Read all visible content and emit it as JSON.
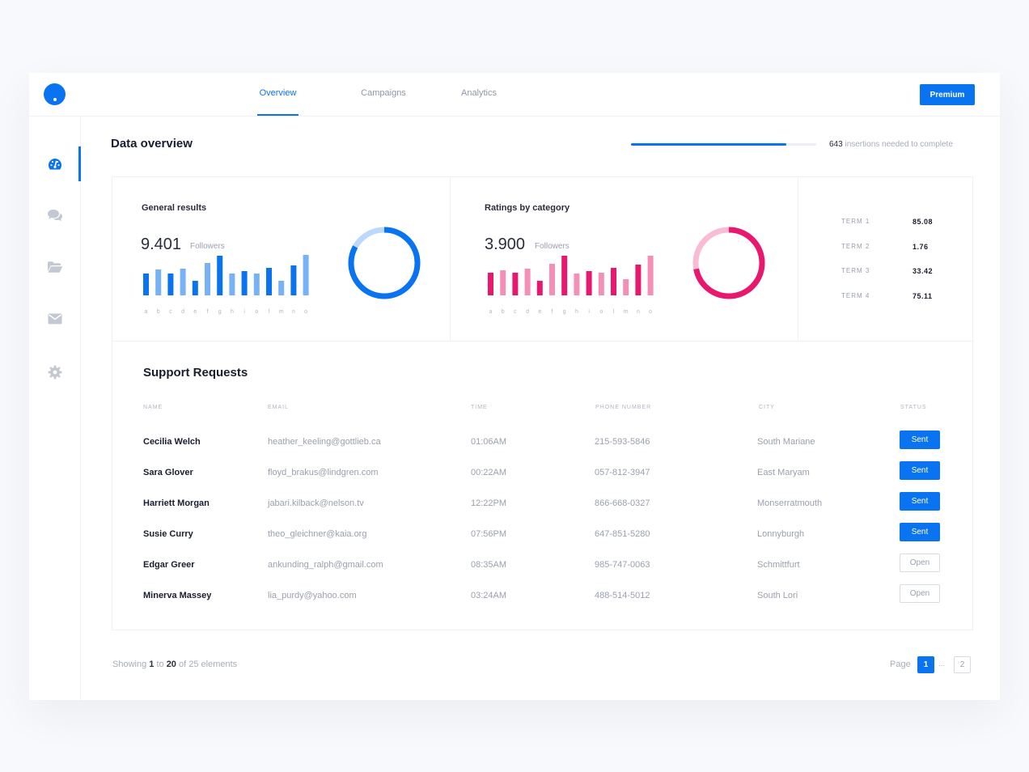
{
  "header": {
    "tabs": [
      {
        "label": "Overview",
        "active": true
      },
      {
        "label": "Campaigns",
        "active": false
      },
      {
        "label": "Analytics",
        "active": false
      }
    ],
    "premium_label": "Premium"
  },
  "sidebar": {
    "items": [
      {
        "icon": "dashboard-icon",
        "active": true
      },
      {
        "icon": "chat-icon",
        "active": false
      },
      {
        "icon": "folder-icon",
        "active": false
      },
      {
        "icon": "mail-icon",
        "active": false
      },
      {
        "icon": "settings-icon",
        "active": false
      }
    ]
  },
  "overview": {
    "title": "Data overview",
    "progress_fraction": 0.84,
    "progress_count": "643",
    "progress_text": " insertions needed to complete"
  },
  "general_results": {
    "title": "General results",
    "value": "9.401",
    "unit": "Followers",
    "donut_fraction": 0.83,
    "colors": {
      "bar_primary": "#0a73f0",
      "bar_secondary": "#78b2f6",
      "ring": "#0a73f0",
      "ring_track": "#bcd8fb"
    }
  },
  "ratings": {
    "title": "Ratings by category",
    "value": "3.900",
    "unit": "Followers",
    "donut_fraction": 0.72,
    "colors": {
      "bar_primary": "#e8186f",
      "bar_secondary": "#f48fb7",
      "ring": "#e8186f",
      "ring_track": "#f8bcd4"
    }
  },
  "chart_data": [
    {
      "type": "bar",
      "categories": [
        "a",
        "b",
        "c",
        "d",
        "e",
        "f",
        "g",
        "h",
        "i",
        "o",
        "l",
        "m",
        "n",
        "o"
      ],
      "values": [
        27,
        32,
        27,
        33,
        18,
        40,
        49,
        27,
        30,
        27,
        34,
        18,
        37,
        50
      ],
      "highlight": [
        true,
        false,
        true,
        false,
        true,
        false,
        true,
        false,
        true,
        false,
        true,
        false,
        true,
        false
      ],
      "ylim": [
        0,
        50
      ]
    },
    {
      "type": "bar",
      "categories": [
        "a",
        "b",
        "c",
        "d",
        "e",
        "f",
        "g",
        "h",
        "i",
        "o",
        "l",
        "m",
        "n",
        "o"
      ],
      "values": [
        28,
        31,
        28,
        33,
        18,
        39,
        49,
        27,
        30,
        28,
        34,
        20,
        38,
        49
      ],
      "highlight": [
        true,
        false,
        true,
        false,
        true,
        false,
        true,
        false,
        true,
        false,
        true,
        false,
        true,
        false
      ],
      "ylim": [
        0,
        50
      ]
    }
  ],
  "terms": [
    {
      "label": "TERM 1",
      "value": "85.08"
    },
    {
      "label": "TERM 2",
      "value": "1.76"
    },
    {
      "label": "TERM 3",
      "value": "33.42"
    },
    {
      "label": "TERM 4",
      "value": "75.11"
    }
  ],
  "support": {
    "title": "Support Requests",
    "columns": [
      "NAME",
      "EMAIL",
      "TIME",
      "PHONE NUMBER",
      "CITY",
      "STATUS"
    ],
    "rows": [
      {
        "name": "Cecilia Welch",
        "email": "heather_keeling@gottlieb.ca",
        "time": "01:06AM",
        "phone": "215-593-5846",
        "city": "South Mariane",
        "status": "Sent"
      },
      {
        "name": "Sara Glover",
        "email": "floyd_brakus@lindgren.com",
        "time": "00:22AM",
        "phone": "057-812-3947",
        "city": "East Maryam",
        "status": "Sent"
      },
      {
        "name": "Harriett Morgan",
        "email": "jabari.kilback@nelson.tv",
        "time": "12:22PM",
        "phone": "866-668-0327",
        "city": "Monserratmouth",
        "status": "Sent"
      },
      {
        "name": "Susie Curry",
        "email": "theo_gleichner@kaia.org",
        "time": "07:56PM",
        "phone": "647-851-5280",
        "city": "Lonnyburgh",
        "status": "Sent"
      },
      {
        "name": "Edgar Greer",
        "email": "ankunding_ralph@gmail.com",
        "time": "08:35AM",
        "phone": "985-747-0063",
        "city": "Schmittfurt",
        "status": "Open"
      },
      {
        "name": "Minerva Massey",
        "email": "lia_purdy@yahoo.com",
        "time": "03:24AM",
        "phone": "488-514-5012",
        "city": "South Lori",
        "status": "Open"
      }
    ]
  },
  "pagination": {
    "showing_prefix": "Showing ",
    "from": "1",
    "to_word": " to ",
    "to": "20",
    "of_word": " of ",
    "total": "25 elements",
    "page_label": "Page",
    "current_page": "1",
    "ellipsis": "...",
    "other_page": "2"
  }
}
